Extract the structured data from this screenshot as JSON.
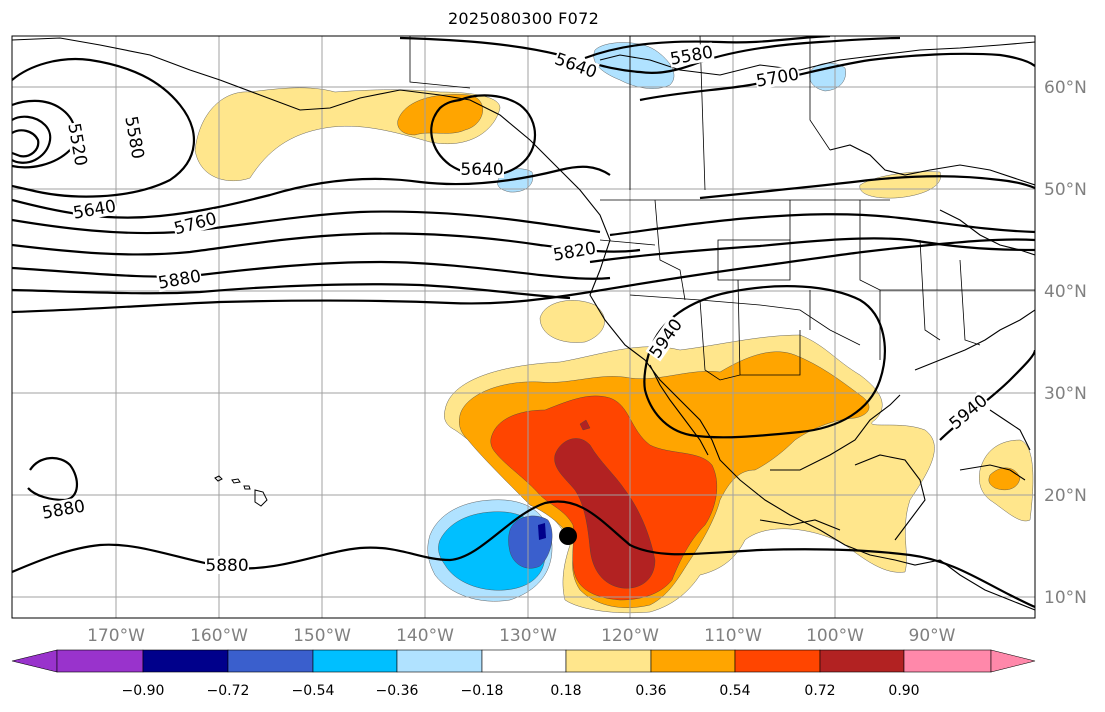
{
  "title": "2025080300 F072",
  "lon_labels": [
    "170°W",
    "160°W",
    "150°W",
    "140°W",
    "130°W",
    "120°W",
    "110°W",
    "100°W",
    "90°W"
  ],
  "lat_labels": [
    "60°N",
    "50°N",
    "40°N",
    "30°N",
    "20°N",
    "10°N"
  ],
  "contour_labels": {
    "c5640_ak": "5640",
    "c5580_ak": "5580",
    "c5700": "5700",
    "c5552": "5520",
    "c5580_w": "5580",
    "c5640_w": "5640",
    "c5760": "5760",
    "c5880_w": "5880",
    "c5640_bc": "5640",
    "c5820": "5820",
    "c5940_w": "5940",
    "c5940_e": "5940",
    "c5880_hi": "5880",
    "c5880_s": "5880"
  },
  "colorbar": {
    "tick_labels": [
      "−0.90",
      "−0.72",
      "−0.54",
      "−0.36",
      "−0.18",
      "0.18",
      "0.36",
      "0.54",
      "0.72",
      "0.90"
    ],
    "colors": [
      "#9933cc",
      "#00008b",
      "#3a5fcd",
      "#00bfff",
      "#b0e2ff",
      "#ffffff",
      "#ffe68c",
      "#ffa500",
      "#ff4500",
      "#b22222",
      "#ff88aa"
    ]
  },
  "fill_colors": {
    "pos1": "#ffe68c",
    "pos2": "#ffa500",
    "pos3": "#ff4500",
    "pos4": "#b22222",
    "neg1": "#b0e2ff",
    "neg2": "#00bfff",
    "neg3": "#3a5fcd",
    "neg4": "#00008b"
  },
  "marker": "tropical-cyclone-center-dot"
}
